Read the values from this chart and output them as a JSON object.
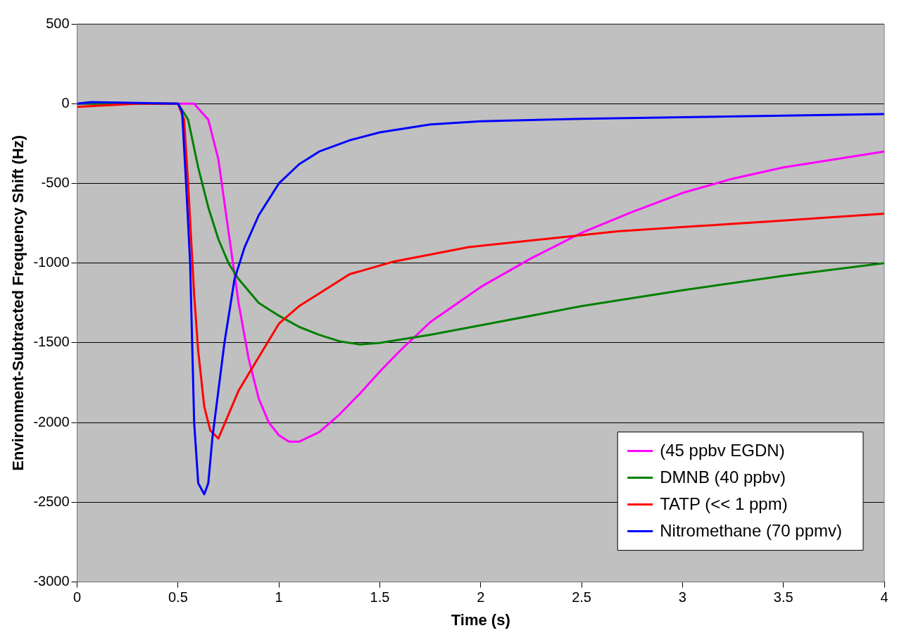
{
  "chart_data": {
    "type": "line",
    "xlabel": "Time (s)",
    "ylabel": "Environment-Subtracted Frequency Shift (Hz)",
    "xlim": [
      0,
      4
    ],
    "xticks": [
      0,
      0.5,
      1,
      1.5,
      2,
      2.5,
      3,
      3.5,
      4
    ],
    "ylim": [
      -3000,
      500
    ],
    "yticks": [
      -3000,
      -2500,
      -2000,
      -1500,
      -1000,
      -500,
      0,
      500
    ],
    "grid": "y",
    "legend": "bottom right",
    "marker": "none",
    "line_style": "solid",
    "series": [
      {
        "name": "(45 ppbv EGDN)",
        "color": "#ff00ff",
        "x": [
          0,
          0.3,
          0.58,
          0.6,
          0.65,
          0.7,
          0.75,
          0.8,
          0.85,
          0.9,
          0.95,
          1.0,
          1.05,
          1.1,
          1.2,
          1.3,
          1.4,
          1.5,
          1.6,
          1.75,
          2,
          2.25,
          2.5,
          2.75,
          3,
          3.25,
          3.5,
          3.75,
          4
        ],
        "values": [
          0,
          0,
          0,
          -30,
          -100,
          -350,
          -800,
          -1250,
          -1600,
          -1850,
          -2000,
          -2080,
          -2120,
          -2120,
          -2060,
          -1950,
          -1820,
          -1680,
          -1550,
          -1370,
          -1150,
          -970,
          -810,
          -680,
          -560,
          -470,
          -400,
          -350,
          -300
        ]
      },
      {
        "name": "DMNB (40 ppbv)",
        "color": "#008000",
        "x": [
          0,
          0.3,
          0.5,
          0.55,
          0.6,
          0.65,
          0.7,
          0.75,
          0.8,
          0.9,
          1.0,
          1.1,
          1.2,
          1.3,
          1.4,
          1.5,
          1.75,
          2,
          2.5,
          3,
          3.5,
          4
        ],
        "values": [
          0,
          0,
          0,
          -100,
          -400,
          -650,
          -850,
          -1000,
          -1100,
          -1250,
          -1330,
          -1400,
          -1450,
          -1490,
          -1510,
          -1500,
          -1450,
          -1390,
          -1270,
          -1170,
          -1080,
          -1000
        ]
      },
      {
        "name": "TATP (<< 1 ppm)",
        "color": "#ff0000",
        "x": [
          0,
          0.3,
          0.5,
          0.53,
          0.55,
          0.58,
          0.6,
          0.63,
          0.66,
          0.7,
          0.75,
          0.8,
          0.9,
          1.0,
          1.1,
          1.2,
          1.35,
          1.57,
          1.94,
          2.31,
          2.68,
          3.05,
          3.42,
          4
        ],
        "values": [
          -20,
          0,
          0,
          -100,
          -500,
          -1200,
          -1550,
          -1900,
          -2050,
          -2100,
          -1950,
          -1800,
          -1590,
          -1380,
          -1270,
          -1190,
          -1070,
          -990,
          -900,
          -850,
          -800,
          -770,
          -740,
          -690
        ]
      },
      {
        "name": "Nitromethane (70 ppmv)",
        "color": "#0000ff",
        "x": [
          0,
          0.07,
          0.5,
          0.52,
          0.54,
          0.56,
          0.58,
          0.6,
          0.63,
          0.65,
          0.67,
          0.7,
          0.73,
          0.78,
          0.83,
          0.9,
          1.0,
          1.1,
          1.2,
          1.35,
          1.5,
          1.75,
          2,
          2.5,
          3,
          3.5,
          4
        ],
        "values": [
          0,
          10,
          0,
          -50,
          -500,
          -1000,
          -2000,
          -2380,
          -2450,
          -2380,
          -2100,
          -1800,
          -1500,
          -1100,
          -900,
          -700,
          -500,
          -380,
          -300,
          -230,
          -180,
          -130,
          -110,
          -95,
          -85,
          -75,
          -65
        ]
      }
    ]
  }
}
